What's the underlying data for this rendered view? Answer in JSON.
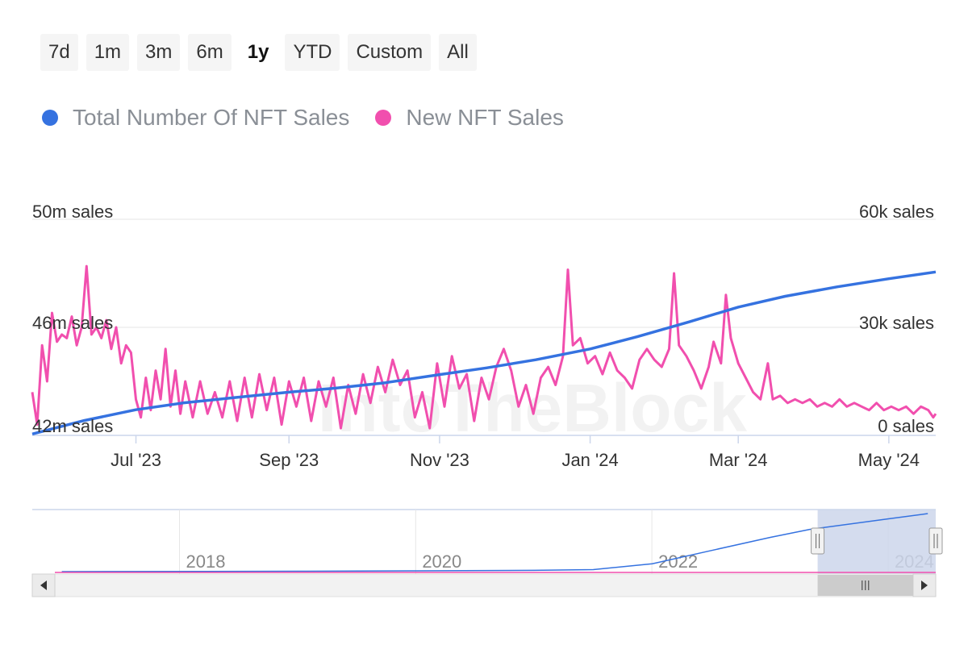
{
  "range_selector": {
    "buttons": [
      "7d",
      "1m",
      "3m",
      "6m",
      "1y",
      "YTD",
      "Custom",
      "All"
    ],
    "active": "1y"
  },
  "legend": {
    "total_label": "Total Number Of NFT Sales",
    "new_label": "New NFT Sales"
  },
  "colors": {
    "total": "#3572e0",
    "new": "#f14fae",
    "grid": "#e6e6e6",
    "navigator_mask": "#ccd6eb"
  },
  "watermark": "IntoTheBlock",
  "chart_data": {
    "type": "line",
    "x_start": "2023-05-20",
    "x_end": "2024-05-20",
    "xticks": [
      {
        "label": "Jul '23",
        "date": "2023-07-01"
      },
      {
        "label": "Sep '23",
        "date": "2023-09-01"
      },
      {
        "label": "Nov '23",
        "date": "2023-11-01"
      },
      {
        "label": "Jan '24",
        "date": "2024-01-01"
      },
      {
        "label": "Mar '24",
        "date": "2024-03-01"
      },
      {
        "label": "May '24",
        "date": "2024-05-01"
      }
    ],
    "y_left": {
      "ticks": [
        "42m sales",
        "46m sales",
        "50m sales"
      ],
      "min": 42,
      "max": 50,
      "unit": "m sales"
    },
    "y_right": {
      "ticks": [
        "0 sales",
        "30k sales",
        "60k sales"
      ],
      "min": 0,
      "max": 60,
      "unit": "k sales"
    },
    "series": [
      {
        "name": "Total Number Of NFT Sales",
        "axis": "left",
        "values": [
          [
            "2023-05-20",
            42.05
          ],
          [
            "2023-06-10",
            42.55
          ],
          [
            "2023-07-01",
            42.95
          ],
          [
            "2023-07-20",
            43.2
          ],
          [
            "2023-08-10",
            43.4
          ],
          [
            "2023-09-01",
            43.6
          ],
          [
            "2023-09-20",
            43.75
          ],
          [
            "2023-10-10",
            43.95
          ],
          [
            "2023-11-01",
            44.25
          ],
          [
            "2023-11-20",
            44.5
          ],
          [
            "2023-12-10",
            44.8
          ],
          [
            "2024-01-01",
            45.2
          ],
          [
            "2024-01-20",
            45.65
          ],
          [
            "2024-02-10",
            46.2
          ],
          [
            "2024-03-01",
            46.75
          ],
          [
            "2024-03-20",
            47.15
          ],
          [
            "2024-04-10",
            47.5
          ],
          [
            "2024-05-01",
            47.8
          ],
          [
            "2024-05-20",
            48.05
          ]
        ]
      },
      {
        "name": "New NFT Sales",
        "axis": "right",
        "values": [
          [
            "2023-05-20",
            12
          ],
          [
            "2023-05-22",
            3
          ],
          [
            "2023-05-24",
            25
          ],
          [
            "2023-05-26",
            15
          ],
          [
            "2023-05-28",
            34
          ],
          [
            "2023-05-30",
            26
          ],
          [
            "2023-06-01",
            28
          ],
          [
            "2023-06-03",
            27
          ],
          [
            "2023-06-05",
            33
          ],
          [
            "2023-06-07",
            25
          ],
          [
            "2023-06-09",
            30
          ],
          [
            "2023-06-11",
            47
          ],
          [
            "2023-06-13",
            28
          ],
          [
            "2023-06-15",
            30
          ],
          [
            "2023-06-17",
            27
          ],
          [
            "2023-06-19",
            32
          ],
          [
            "2023-06-21",
            24
          ],
          [
            "2023-06-23",
            30
          ],
          [
            "2023-06-25",
            20
          ],
          [
            "2023-06-27",
            25
          ],
          [
            "2023-06-29",
            23
          ],
          [
            "2023-07-01",
            10
          ],
          [
            "2023-07-03",
            5
          ],
          [
            "2023-07-05",
            16
          ],
          [
            "2023-07-07",
            7
          ],
          [
            "2023-07-09",
            18
          ],
          [
            "2023-07-11",
            10
          ],
          [
            "2023-07-13",
            24
          ],
          [
            "2023-07-15",
            8
          ],
          [
            "2023-07-17",
            18
          ],
          [
            "2023-07-19",
            6
          ],
          [
            "2023-07-21",
            15
          ],
          [
            "2023-07-24",
            5
          ],
          [
            "2023-07-27",
            15
          ],
          [
            "2023-07-30",
            6
          ],
          [
            "2023-08-02",
            12
          ],
          [
            "2023-08-05",
            5
          ],
          [
            "2023-08-08",
            15
          ],
          [
            "2023-08-11",
            4
          ],
          [
            "2023-08-14",
            16
          ],
          [
            "2023-08-17",
            5
          ],
          [
            "2023-08-20",
            17
          ],
          [
            "2023-08-23",
            7
          ],
          [
            "2023-08-26",
            16
          ],
          [
            "2023-08-29",
            3
          ],
          [
            "2023-09-01",
            15
          ],
          [
            "2023-09-04",
            8
          ],
          [
            "2023-09-07",
            16
          ],
          [
            "2023-09-10",
            4
          ],
          [
            "2023-09-13",
            15
          ],
          [
            "2023-09-16",
            8
          ],
          [
            "2023-09-19",
            16
          ],
          [
            "2023-09-22",
            2
          ],
          [
            "2023-09-25",
            14
          ],
          [
            "2023-09-28",
            6
          ],
          [
            "2023-10-01",
            17
          ],
          [
            "2023-10-04",
            9
          ],
          [
            "2023-10-07",
            19
          ],
          [
            "2023-10-10",
            12
          ],
          [
            "2023-10-13",
            21
          ],
          [
            "2023-10-16",
            14
          ],
          [
            "2023-10-19",
            18
          ],
          [
            "2023-10-22",
            5
          ],
          [
            "2023-10-25",
            12
          ],
          [
            "2023-10-28",
            2
          ],
          [
            "2023-10-31",
            20
          ],
          [
            "2023-11-03",
            8
          ],
          [
            "2023-11-06",
            22
          ],
          [
            "2023-11-09",
            13
          ],
          [
            "2023-11-12",
            17
          ],
          [
            "2023-11-15",
            4
          ],
          [
            "2023-11-18",
            16
          ],
          [
            "2023-11-21",
            10
          ],
          [
            "2023-11-24",
            19
          ],
          [
            "2023-11-27",
            24
          ],
          [
            "2023-11-30",
            18
          ],
          [
            "2023-12-03",
            8
          ],
          [
            "2023-12-06",
            14
          ],
          [
            "2023-12-09",
            6
          ],
          [
            "2023-12-12",
            16
          ],
          [
            "2023-12-15",
            19
          ],
          [
            "2023-12-18",
            14
          ],
          [
            "2023-12-21",
            22
          ],
          [
            "2023-12-23",
            46
          ],
          [
            "2023-12-25",
            25
          ],
          [
            "2023-12-28",
            27
          ],
          [
            "2023-12-31",
            20
          ],
          [
            "2024-01-03",
            22
          ],
          [
            "2024-01-06",
            17
          ],
          [
            "2024-01-09",
            23
          ],
          [
            "2024-01-12",
            18
          ],
          [
            "2024-01-15",
            16
          ],
          [
            "2024-01-18",
            13
          ],
          [
            "2024-01-21",
            21
          ],
          [
            "2024-01-24",
            24
          ],
          [
            "2024-01-27",
            21
          ],
          [
            "2024-01-30",
            19
          ],
          [
            "2024-02-02",
            24
          ],
          [
            "2024-02-04",
            45
          ],
          [
            "2024-02-06",
            25
          ],
          [
            "2024-02-09",
            22
          ],
          [
            "2024-02-12",
            18
          ],
          [
            "2024-02-15",
            13
          ],
          [
            "2024-02-18",
            19
          ],
          [
            "2024-02-20",
            26
          ],
          [
            "2024-02-23",
            20
          ],
          [
            "2024-02-25",
            39
          ],
          [
            "2024-02-27",
            27
          ],
          [
            "2024-03-01",
            20
          ],
          [
            "2024-03-04",
            16
          ],
          [
            "2024-03-07",
            12
          ],
          [
            "2024-03-10",
            10
          ],
          [
            "2024-03-13",
            20
          ],
          [
            "2024-03-15",
            10
          ],
          [
            "2024-03-18",
            11
          ],
          [
            "2024-03-21",
            9
          ],
          [
            "2024-03-24",
            10
          ],
          [
            "2024-03-27",
            9
          ],
          [
            "2024-03-30",
            10
          ],
          [
            "2024-04-02",
            8
          ],
          [
            "2024-04-05",
            9
          ],
          [
            "2024-04-08",
            8
          ],
          [
            "2024-04-11",
            10
          ],
          [
            "2024-04-14",
            8
          ],
          [
            "2024-04-17",
            9
          ],
          [
            "2024-04-20",
            8
          ],
          [
            "2024-04-23",
            7
          ],
          [
            "2024-04-26",
            9
          ],
          [
            "2024-04-29",
            7
          ],
          [
            "2024-05-02",
            8
          ],
          [
            "2024-05-05",
            7
          ],
          [
            "2024-05-08",
            8
          ],
          [
            "2024-05-11",
            6
          ],
          [
            "2024-05-14",
            8
          ],
          [
            "2024-05-17",
            7
          ],
          [
            "2024-05-19",
            5
          ],
          [
            "2024-05-20",
            6
          ]
        ]
      }
    ],
    "navigator": {
      "labels": [
        "2018",
        "2020",
        "2022",
        "2024"
      ],
      "values": [
        [
          "2017",
          0
        ],
        [
          "2019",
          0.3
        ],
        [
          "2020",
          0.6
        ],
        [
          "2021",
          1.0
        ],
        [
          "2021-07",
          1.5
        ],
        [
          "2022",
          6
        ],
        [
          "2022-07",
          16
        ],
        [
          "2023",
          26
        ],
        [
          "2023-05",
          32
        ],
        [
          "2024",
          40
        ],
        [
          "2024-05",
          44
        ]
      ]
    }
  }
}
